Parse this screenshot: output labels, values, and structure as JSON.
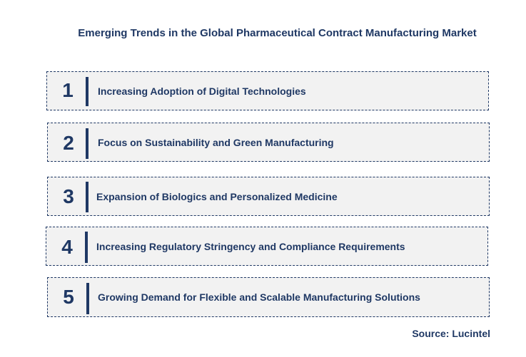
{
  "title": "Emerging Trends in the Global Pharmaceutical Contract Manufacturing Market",
  "trends": [
    {
      "number": "1",
      "label": "Increasing Adoption  of Digital Technologies"
    },
    {
      "number": "2",
      "label": "Focus on Sustainability and Green Manufacturing"
    },
    {
      "number": "3",
      "label": "Expansion of Biologics and Personalized Medicine"
    },
    {
      "number": "4",
      "label": "Increasing Regulatory Stringency and Compliance Requirements"
    },
    {
      "number": "5",
      "label": "Growing Demand for Flexible and Scalable Manufacturing Solutions"
    }
  ],
  "source": "Source: Lucintel",
  "colors": {
    "text": "#1f3864",
    "box_fill": "#f2f2f2",
    "border": "#1f3864"
  }
}
